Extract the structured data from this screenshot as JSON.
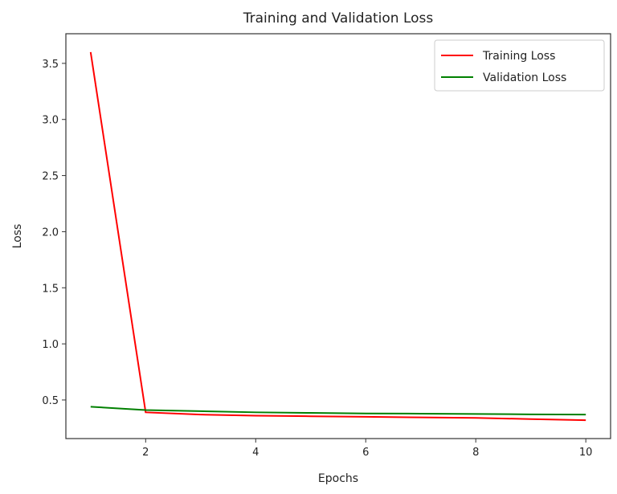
{
  "chart_data": {
    "type": "line",
    "title": "Training and Validation Loss",
    "xlabel": "Epochs",
    "ylabel": "Loss",
    "x": [
      1,
      2,
      3,
      4,
      5,
      6,
      7,
      8,
      9,
      10
    ],
    "series": [
      {
        "name": "Training Loss",
        "color": "#ff0000",
        "values": [
          3.6,
          0.39,
          0.37,
          0.36,
          0.355,
          0.35,
          0.345,
          0.34,
          0.33,
          0.32
        ]
      },
      {
        "name": "Validation Loss",
        "color": "#008000",
        "values": [
          0.44,
          0.41,
          0.4,
          0.39,
          0.385,
          0.38,
          0.378,
          0.375,
          0.372,
          0.37
        ]
      }
    ],
    "xlim": [
      0.55,
      10.45
    ],
    "ylim": [
      0.156,
      3.764
    ],
    "xticks": [
      2,
      4,
      6,
      8,
      10
    ],
    "xtick_labels": [
      "2",
      "4",
      "6",
      "8",
      "10"
    ],
    "yticks": [
      0.5,
      1.0,
      1.5,
      2.0,
      2.5,
      3.0,
      3.5
    ],
    "ytick_labels": [
      "0.5",
      "1.0",
      "1.5",
      "2.0",
      "2.5",
      "3.0",
      "3.5"
    ],
    "grid": false,
    "legend": "top-right"
  }
}
